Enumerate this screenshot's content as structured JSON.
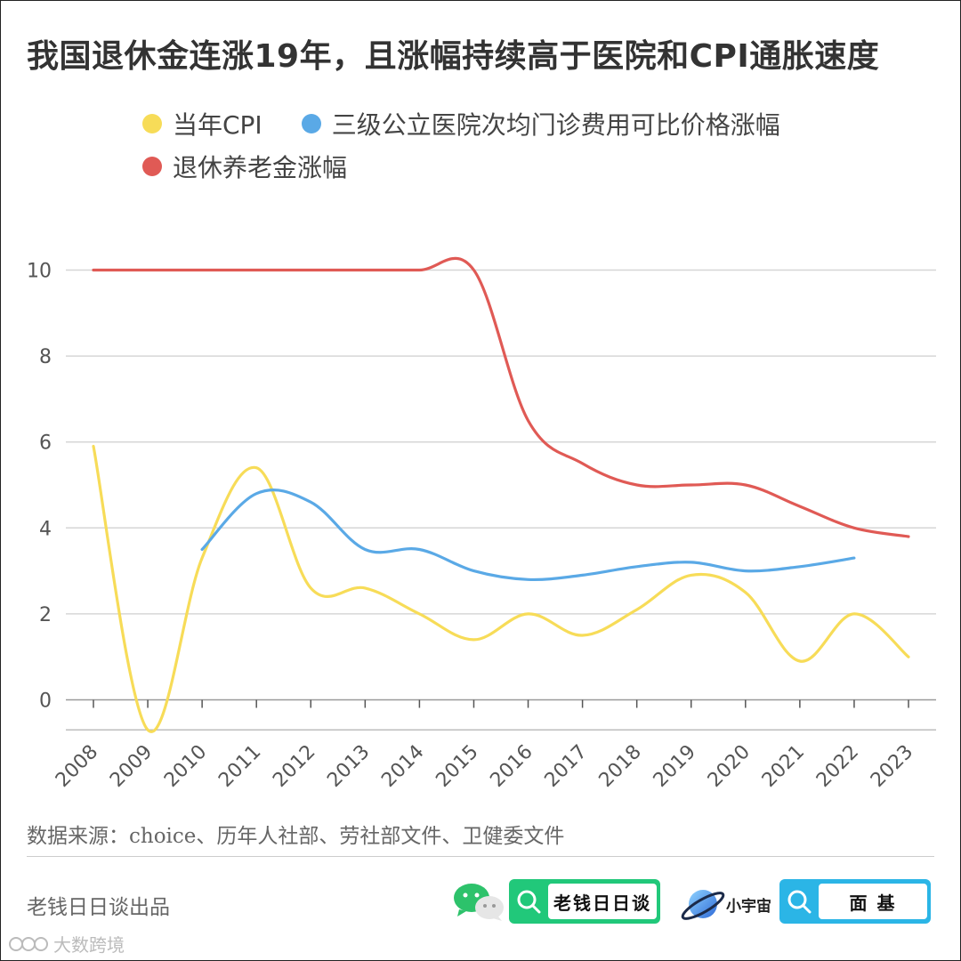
{
  "title": "我国退休金连涨19年，且涨幅持续高于医院和CPI通胀速度",
  "chart_data": {
    "type": "line",
    "categories": [
      "2008",
      "2009",
      "2010",
      "2011",
      "2012",
      "2013",
      "2014",
      "2015",
      "2016",
      "2017",
      "2018",
      "2019",
      "2020",
      "2021",
      "2022",
      "2023"
    ],
    "series": [
      {
        "name": "当年CPI",
        "color": "#f7dc58",
        "values": [
          5.9,
          -0.7,
          3.3,
          5.4,
          2.6,
          2.6,
          2.0,
          1.4,
          2.0,
          1.5,
          2.1,
          2.9,
          2.5,
          0.9,
          2.0,
          1.0
        ]
      },
      {
        "name": "三级公立医院次均门诊费用可比价格涨幅",
        "color": "#5aa9e6",
        "values": [
          null,
          null,
          3.5,
          4.8,
          4.6,
          3.5,
          3.5,
          3.0,
          2.8,
          2.9,
          3.1,
          3.2,
          3.0,
          3.1,
          3.3,
          null
        ]
      },
      {
        "name": "退休养老金涨幅",
        "color": "#e05a55",
        "values": [
          10,
          10,
          10,
          10,
          10,
          10,
          10,
          10,
          6.5,
          5.5,
          5.0,
          5.0,
          5.0,
          4.5,
          4.0,
          3.8
        ]
      }
    ],
    "y_ticks": [
      0,
      2,
      4,
      6,
      8,
      10
    ],
    "ylim": [
      -0.7,
      11
    ],
    "grid": true,
    "legend_position": "top"
  },
  "source": "数据来源：choice、历年人社部、劳社部文件、卫健委文件",
  "credit": "老钱日日谈出品",
  "search_box_1": "老钱日日谈",
  "brand_2": "小宇宙",
  "search_box_2": "面 基",
  "watermark": "大数跨境",
  "icons": [
    "wechat-icon",
    "search-icon",
    "planet-icon",
    "watermark-icon"
  ]
}
